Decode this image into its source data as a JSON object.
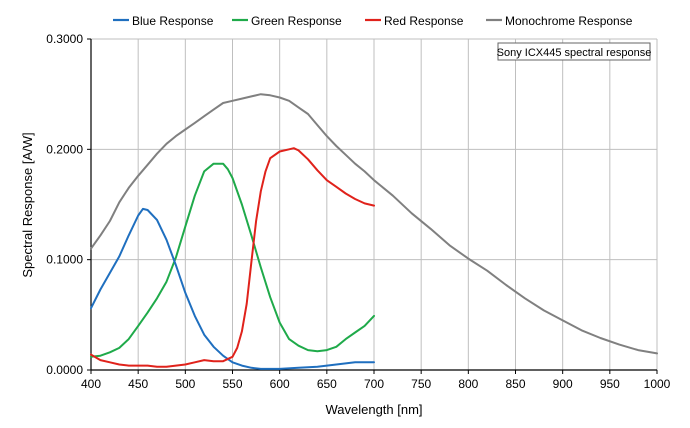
{
  "chart_data": {
    "type": "line",
    "annotation": "Sony ICX445 spectral response",
    "xlabel": "Wavelength [nm]",
    "ylabel": "Spectral Response [A/W]",
    "xlim": [
      400,
      1000
    ],
    "ylim": [
      0,
      0.3
    ],
    "x_ticks": [
      400,
      450,
      500,
      550,
      600,
      650,
      700,
      750,
      800,
      850,
      900,
      950,
      1000
    ],
    "y_ticks": [
      0.0,
      0.1,
      0.2,
      0.3
    ],
    "y_tick_labels": [
      "0.0000",
      "0.1000",
      "0.2000",
      "0.3000"
    ],
    "grid": true,
    "legend_position": "top",
    "series": [
      {
        "name": "Blue Response",
        "color": "#1f6fbf",
        "x": [
          400,
          410,
          420,
          430,
          440,
          450,
          455,
          460,
          470,
          480,
          490,
          500,
          510,
          520,
          530,
          540,
          550,
          560,
          570,
          580,
          590,
          600,
          620,
          640,
          660,
          680,
          700
        ],
        "y": [
          0.056,
          0.073,
          0.088,
          0.103,
          0.122,
          0.14,
          0.146,
          0.145,
          0.136,
          0.118,
          0.095,
          0.07,
          0.049,
          0.032,
          0.021,
          0.013,
          0.007,
          0.004,
          0.002,
          0.001,
          0.001,
          0.001,
          0.002,
          0.003,
          0.005,
          0.007,
          0.007
        ]
      },
      {
        "name": "Green Response",
        "color": "#1faa4a",
        "x": [
          400,
          410,
          420,
          430,
          440,
          450,
          460,
          470,
          480,
          490,
          500,
          510,
          520,
          530,
          540,
          545,
          550,
          560,
          570,
          580,
          590,
          600,
          610,
          620,
          630,
          640,
          650,
          660,
          670,
          680,
          690,
          700
        ],
        "y": [
          0.012,
          0.013,
          0.016,
          0.02,
          0.028,
          0.04,
          0.052,
          0.065,
          0.08,
          0.102,
          0.13,
          0.158,
          0.18,
          0.187,
          0.187,
          0.182,
          0.174,
          0.15,
          0.122,
          0.093,
          0.066,
          0.043,
          0.028,
          0.022,
          0.018,
          0.017,
          0.018,
          0.021,
          0.028,
          0.034,
          0.04,
          0.049
        ]
      },
      {
        "name": "Red Response",
        "color": "#e0221b",
        "x": [
          400,
          410,
          420,
          430,
          440,
          450,
          460,
          470,
          480,
          490,
          500,
          510,
          520,
          530,
          540,
          550,
          555,
          560,
          565,
          570,
          575,
          580,
          585,
          590,
          600,
          610,
          615,
          620,
          630,
          640,
          650,
          660,
          670,
          680,
          690,
          700
        ],
        "y": [
          0.014,
          0.009,
          0.007,
          0.005,
          0.004,
          0.004,
          0.004,
          0.003,
          0.003,
          0.004,
          0.005,
          0.007,
          0.009,
          0.008,
          0.008,
          0.012,
          0.02,
          0.035,
          0.06,
          0.098,
          0.135,
          0.162,
          0.18,
          0.192,
          0.198,
          0.2,
          0.201,
          0.199,
          0.191,
          0.181,
          0.172,
          0.166,
          0.16,
          0.155,
          0.151,
          0.149
        ]
      },
      {
        "name": "Monochrome Response",
        "color": "#808080",
        "x": [
          400,
          410,
          420,
          430,
          440,
          450,
          460,
          470,
          480,
          490,
          500,
          510,
          520,
          530,
          540,
          550,
          560,
          570,
          580,
          590,
          600,
          610,
          620,
          630,
          640,
          650,
          660,
          670,
          680,
          690,
          700,
          720,
          740,
          760,
          780,
          800,
          820,
          840,
          860,
          880,
          900,
          920,
          940,
          960,
          980,
          1000
        ],
        "y": [
          0.11,
          0.122,
          0.135,
          0.152,
          0.165,
          0.176,
          0.186,
          0.196,
          0.205,
          0.212,
          0.218,
          0.224,
          0.23,
          0.236,
          0.242,
          0.244,
          0.246,
          0.248,
          0.25,
          0.249,
          0.247,
          0.244,
          0.238,
          0.232,
          0.222,
          0.212,
          0.203,
          0.195,
          0.187,
          0.18,
          0.172,
          0.158,
          0.142,
          0.128,
          0.113,
          0.101,
          0.09,
          0.077,
          0.065,
          0.054,
          0.045,
          0.036,
          0.029,
          0.023,
          0.018,
          0.015
        ]
      }
    ]
  }
}
